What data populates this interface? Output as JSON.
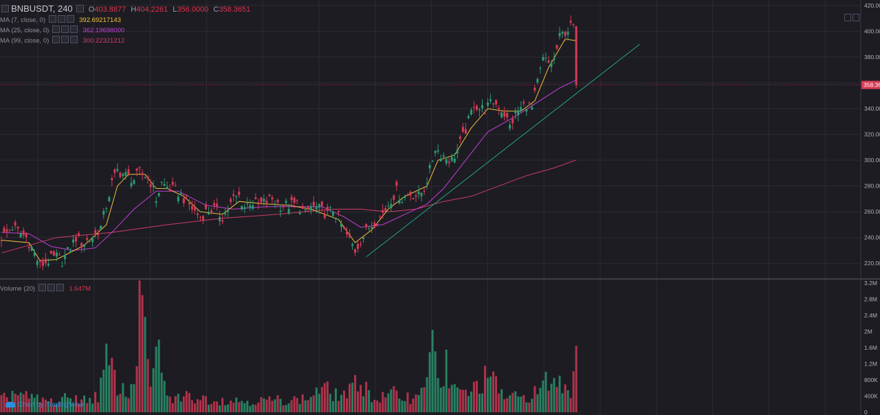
{
  "header": {
    "symbol": "BNBUSDT, 240",
    "ohlc": {
      "o_label": "O",
      "o": "403.8877",
      "h_label": "H",
      "h": "404.2261",
      "l_label": "L",
      "l": "356.0000",
      "c_label": "C",
      "c": "358.3651"
    }
  },
  "indicators": [
    {
      "name": "MA (7, close, 0)",
      "value": "392.69217143",
      "color": "#f5c33b"
    },
    {
      "name": "MA (25, close, 0)",
      "value": "362.19698000",
      "color": "#c440d8"
    },
    {
      "name": "MA (99, close, 0)",
      "value": "300.22321212",
      "color": "#d13d66"
    }
  ],
  "volume_legend": {
    "name": "Volume (20)",
    "value": "1.647M"
  },
  "last_price_label": "358.36",
  "branding": "Chart by TradingView",
  "colors": {
    "up": "#2c9b72",
    "down": "#d63a55",
    "background": "#1d1c23",
    "grid": "#2b2b33",
    "trendline": "#1fa784"
  },
  "chart_data": {
    "type": "candlestick",
    "price_axis": {
      "min": 210,
      "max": 420,
      "ticks": [
        "220.00",
        "240.00",
        "260.00",
        "280.00",
        "300.00",
        "320.00",
        "340.00",
        "360.00",
        "380.00",
        "400.00",
        "420.00"
      ]
    },
    "volume_axis": {
      "min": 0,
      "max": 3.2,
      "unit": "M",
      "ticks": [
        "0",
        "400K",
        "800K",
        "1.2M",
        "1.6M",
        "2M",
        "2.4M",
        "2.8M",
        "3.2M"
      ]
    },
    "price_path": [
      [
        0,
        240
      ],
      [
        4,
        248
      ],
      [
        9,
        240
      ],
      [
        11,
        232
      ],
      [
        14,
        218
      ],
      [
        17,
        222
      ],
      [
        20,
        225
      ],
      [
        22,
        222
      ],
      [
        25,
        232
      ],
      [
        27,
        240
      ],
      [
        29,
        235
      ],
      [
        33,
        240
      ],
      [
        36,
        248
      ],
      [
        38,
        265
      ],
      [
        40,
        282
      ],
      [
        42,
        292
      ],
      [
        45,
        288
      ],
      [
        48,
        285
      ],
      [
        50,
        290
      ],
      [
        52,
        288
      ],
      [
        54,
        283
      ],
      [
        56,
        270
      ],
      [
        58,
        282
      ],
      [
        61,
        278
      ],
      [
        64,
        275
      ],
      [
        67,
        268
      ],
      [
        70,
        260
      ],
      [
        72,
        256
      ],
      [
        74,
        260
      ],
      [
        77,
        262
      ],
      [
        80,
        256
      ],
      [
        82,
        262
      ],
      [
        84,
        270
      ],
      [
        86,
        272
      ],
      [
        88,
        264
      ],
      [
        90,
        268
      ],
      [
        93,
        265
      ],
      [
        96,
        268
      ],
      [
        98,
        270
      ],
      [
        101,
        265
      ],
      [
        104,
        265
      ],
      [
        107,
        266
      ],
      [
        110,
        258
      ],
      [
        112,
        264
      ],
      [
        115,
        262
      ],
      [
        118,
        258
      ],
      [
        120,
        262
      ],
      [
        122,
        255
      ],
      [
        124,
        245
      ],
      [
        126,
        238
      ],
      [
        128,
        230
      ],
      [
        130,
        238
      ],
      [
        133,
        248
      ],
      [
        135,
        252
      ],
      [
        137,
        256
      ],
      [
        139,
        262
      ],
      [
        141,
        270
      ],
      [
        143,
        276
      ],
      [
        145,
        270
      ],
      [
        148,
        274
      ],
      [
        151,
        272
      ],
      [
        153,
        278
      ],
      [
        155,
        292
      ],
      [
        157,
        310
      ],
      [
        159,
        305
      ],
      [
        161,
        302
      ],
      [
        163,
        300
      ],
      [
        165,
        308
      ],
      [
        167,
        318
      ],
      [
        169,
        330
      ],
      [
        171,
        344
      ],
      [
        173,
        340
      ],
      [
        175,
        340
      ],
      [
        178,
        345
      ],
      [
        180,
        342
      ],
      [
        182,
        336
      ],
      [
        184,
        326
      ],
      [
        186,
        336
      ],
      [
        188,
        340
      ],
      [
        190,
        344
      ],
      [
        192,
        340
      ],
      [
        194,
        360
      ],
      [
        196,
        378
      ],
      [
        198,
        375
      ],
      [
        200,
        378
      ],
      [
        202,
        395
      ],
      [
        204,
        400
      ],
      [
        206,
        403
      ],
      [
        207,
        403.8
      ],
      [
        208,
        358.4
      ]
    ],
    "volume_path": [
      [
        0,
        0.3
      ],
      [
        5,
        0.5
      ],
      [
        10,
        0.35
      ],
      [
        15,
        0.3
      ],
      [
        20,
        0.25
      ],
      [
        25,
        0.38
      ],
      [
        30,
        0.3
      ],
      [
        35,
        0.4
      ],
      [
        38,
        1.2
      ],
      [
        40,
        0.9
      ],
      [
        43,
        0.6
      ],
      [
        46,
        0.4
      ],
      [
        48,
        1.0
      ],
      [
        51,
        2.9
      ],
      [
        54,
        0.45
      ],
      [
        57,
        1.8
      ],
      [
        60,
        0.3
      ],
      [
        66,
        0.4
      ],
      [
        72,
        0.35
      ],
      [
        80,
        0.3
      ],
      [
        90,
        0.28
      ],
      [
        100,
        0.3
      ],
      [
        110,
        0.32
      ],
      [
        116,
        0.6
      ],
      [
        122,
        0.4
      ],
      [
        126,
        0.5
      ],
      [
        130,
        0.8
      ],
      [
        135,
        0.3
      ],
      [
        142,
        0.45
      ],
      [
        150,
        0.35
      ],
      [
        156,
        1.45
      ],
      [
        160,
        0.6
      ],
      [
        166,
        0.5
      ],
      [
        170,
        0.5
      ],
      [
        176,
        0.9
      ],
      [
        182,
        0.4
      ],
      [
        188,
        0.35
      ],
      [
        194,
        0.5
      ],
      [
        198,
        0.8
      ],
      [
        202,
        0.7
      ],
      [
        206,
        0.6
      ],
      [
        208,
        1.647
      ]
    ],
    "volume_spikes": [
      [
        38,
        1.7
      ],
      [
        40,
        1.35
      ],
      [
        41,
        1.05
      ],
      [
        51,
        2.9
      ],
      [
        57,
        1.8
      ],
      [
        161,
        1.55
      ],
      [
        208,
        1.647
      ]
    ],
    "candle_count": 209,
    "trendline": [
      [
        132,
        225
      ],
      [
        231,
        390
      ]
    ],
    "ma7": [
      [
        0,
        238
      ],
      [
        10,
        236
      ],
      [
        14,
        222
      ],
      [
        20,
        223
      ],
      [
        30,
        234
      ],
      [
        38,
        250
      ],
      [
        42,
        280
      ],
      [
        46,
        289
      ],
      [
        52,
        289
      ],
      [
        56,
        278
      ],
      [
        60,
        278
      ],
      [
        66,
        272
      ],
      [
        72,
        260
      ],
      [
        80,
        258
      ],
      [
        86,
        268
      ],
      [
        96,
        266
      ],
      [
        104,
        265
      ],
      [
        112,
        262
      ],
      [
        122,
        254
      ],
      [
        128,
        236
      ],
      [
        134,
        246
      ],
      [
        140,
        262
      ],
      [
        146,
        272
      ],
      [
        154,
        280
      ],
      [
        158,
        300
      ],
      [
        164,
        304
      ],
      [
        170,
        325
      ],
      [
        176,
        340
      ],
      [
        182,
        338
      ],
      [
        188,
        338
      ],
      [
        193,
        346
      ],
      [
        198,
        372
      ],
      [
        204,
        394
      ],
      [
        208,
        392.7
      ]
    ],
    "ma25": [
      [
        0,
        244
      ],
      [
        10,
        243
      ],
      [
        18,
        233
      ],
      [
        26,
        230
      ],
      [
        34,
        232
      ],
      [
        40,
        244
      ],
      [
        48,
        262
      ],
      [
        56,
        276
      ],
      [
        64,
        276
      ],
      [
        74,
        265
      ],
      [
        84,
        262
      ],
      [
        96,
        264
      ],
      [
        108,
        264
      ],
      [
        116,
        264
      ],
      [
        124,
        256
      ],
      [
        130,
        248
      ],
      [
        138,
        250
      ],
      [
        146,
        258
      ],
      [
        154,
        266
      ],
      [
        160,
        278
      ],
      [
        168,
        300
      ],
      [
        176,
        322
      ],
      [
        186,
        334
      ],
      [
        194,
        345
      ],
      [
        202,
        356
      ],
      [
        208,
        362.2
      ]
    ],
    "ma99": [
      [
        0,
        228
      ],
      [
        20,
        240
      ],
      [
        40,
        244
      ],
      [
        60,
        250
      ],
      [
        80,
        255
      ],
      [
        100,
        258
      ],
      [
        120,
        262
      ],
      [
        130,
        262
      ],
      [
        140,
        260
      ],
      [
        150,
        262
      ],
      [
        160,
        268
      ],
      [
        170,
        272
      ],
      [
        180,
        280
      ],
      [
        190,
        288
      ],
      [
        200,
        294
      ],
      [
        208,
        300.2
      ]
    ]
  }
}
